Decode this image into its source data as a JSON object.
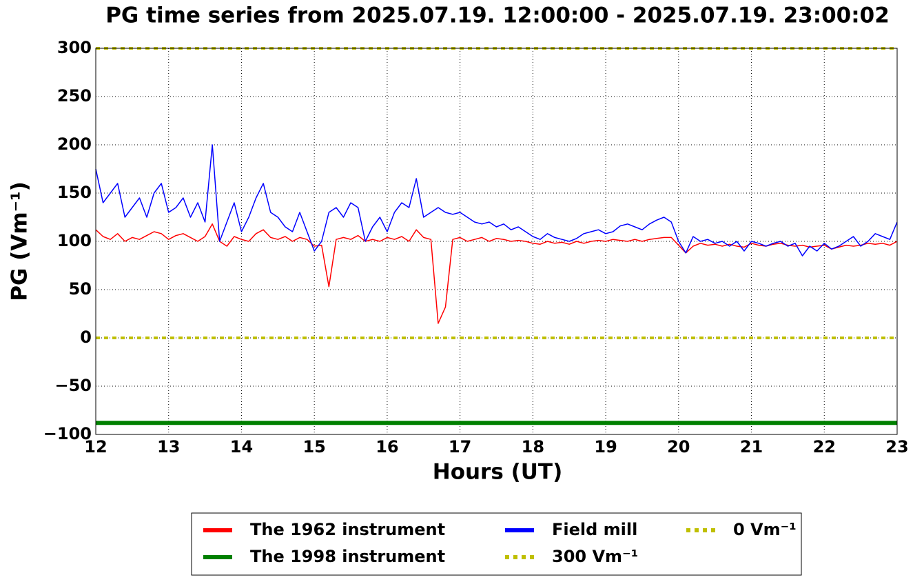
{
  "chart_data": {
    "type": "line",
    "title": "PG time series from 2025.07.19. 12:00:00 - 2025.07.19. 23:00:02",
    "xlabel": "Hours (UT)",
    "ylabel": "PG (Vm⁻¹)",
    "xlim": [
      12,
      23
    ],
    "ylim": [
      -100,
      300
    ],
    "xticks": [
      12,
      13,
      14,
      15,
      16,
      17,
      18,
      19,
      20,
      21,
      22,
      23
    ],
    "yticks": [
      {
        "value": -100,
        "label": "−100"
      },
      {
        "value": -50,
        "label": "−50"
      },
      0,
      50,
      100,
      150,
      200,
      250,
      300
    ],
    "grid": true,
    "legend": "lower center",
    "legend_columns": 3,
    "x": [
      12.0,
      12.1,
      12.2,
      12.3,
      12.4,
      12.5,
      12.6,
      12.7,
      12.8,
      12.9,
      13.0,
      13.1,
      13.2,
      13.3,
      13.4,
      13.5,
      13.6,
      13.7,
      13.8,
      13.9,
      14.0,
      14.1,
      14.2,
      14.3,
      14.4,
      14.5,
      14.6,
      14.7,
      14.8,
      14.9,
      15.0,
      15.1,
      15.2,
      15.3,
      15.4,
      15.5,
      15.6,
      15.7,
      15.8,
      15.9,
      16.0,
      16.1,
      16.2,
      16.3,
      16.4,
      16.5,
      16.6,
      16.7,
      16.8,
      16.9,
      17.0,
      17.1,
      17.2,
      17.3,
      17.4,
      17.5,
      17.6,
      17.7,
      17.8,
      17.9,
      18.0,
      18.1,
      18.2,
      18.3,
      18.4,
      18.5,
      18.6,
      18.7,
      18.8,
      18.9,
      19.0,
      19.1,
      19.2,
      19.3,
      19.4,
      19.5,
      19.6,
      19.7,
      19.8,
      19.9,
      20.0,
      20.1,
      20.2,
      20.3,
      20.4,
      20.5,
      20.6,
      20.7,
      20.8,
      20.9,
      21.0,
      21.1,
      21.2,
      21.3,
      21.4,
      21.5,
      21.6,
      21.7,
      21.8,
      21.9,
      22.0,
      22.1,
      22.2,
      22.3,
      22.4,
      22.5,
      22.6,
      22.7,
      22.8,
      22.9,
      23.0
    ],
    "series": [
      {
        "name": "The 1962 instrument",
        "color": "#ff0000",
        "linewidth": 1.5,
        "values": [
          112,
          105,
          102,
          108,
          100,
          104,
          102,
          106,
          110,
          108,
          102,
          106,
          108,
          104,
          100,
          105,
          118,
          100,
          95,
          105,
          102,
          100,
          108,
          112,
          104,
          102,
          105,
          100,
          104,
          102,
          95,
          96,
          53,
          102,
          104,
          102,
          106,
          100,
          102,
          100,
          104,
          102,
          105,
          100,
          112,
          104,
          102,
          15,
          32,
          102,
          104,
          100,
          102,
          104,
          100,
          103,
          102,
          100,
          101,
          100,
          98,
          97,
          100,
          98,
          99,
          97,
          100,
          98,
          100,
          101,
          100,
          102,
          101,
          100,
          102,
          100,
          102,
          103,
          104,
          104,
          96,
          88,
          95,
          98,
          96,
          97,
          95,
          97,
          95,
          94,
          98,
          96,
          95,
          97,
          98,
          96,
          95,
          96,
          94,
          95,
          96,
          92,
          94,
          96,
          95,
          96,
          98,
          97,
          98,
          96,
          100
        ]
      },
      {
        "name": "The 1998 instrument",
        "color": "#008000",
        "linewidth": 6,
        "x": [
          12,
          23
        ],
        "values": [
          -88,
          -88
        ]
      },
      {
        "name": "Field mill",
        "color": "#0000ff",
        "linewidth": 1.5,
        "values": [
          175,
          140,
          150,
          160,
          125,
          135,
          145,
          125,
          150,
          160,
          130,
          135,
          145,
          125,
          140,
          120,
          200,
          100,
          120,
          140,
          110,
          125,
          145,
          160,
          130,
          125,
          115,
          110,
          130,
          110,
          90,
          100,
          130,
          135,
          125,
          140,
          135,
          100,
          115,
          125,
          110,
          130,
          140,
          135,
          165,
          125,
          130,
          135,
          130,
          128,
          130,
          125,
          120,
          118,
          120,
          115,
          118,
          112,
          115,
          110,
          105,
          102,
          108,
          104,
          102,
          100,
          103,
          108,
          110,
          112,
          108,
          110,
          116,
          118,
          115,
          112,
          118,
          122,
          125,
          120,
          100,
          88,
          105,
          100,
          102,
          98,
          100,
          95,
          100,
          90,
          100,
          98,
          95,
          98,
          100,
          95,
          98,
          85,
          95,
          90,
          98,
          92,
          95,
          100,
          105,
          95,
          100,
          108,
          105,
          102,
          120
        ]
      },
      {
        "name": "300 Vm⁻¹",
        "color": "#bfbf00",
        "linewidth": 4,
        "dashed": true,
        "x": [
          12,
          23
        ],
        "values": [
          300,
          300
        ]
      },
      {
        "name": "0 Vm⁻¹",
        "color": "#bfbf00",
        "linewidth": 4,
        "dashed": true,
        "x": [
          12,
          23
        ],
        "values": [
          0,
          0
        ]
      }
    ]
  }
}
